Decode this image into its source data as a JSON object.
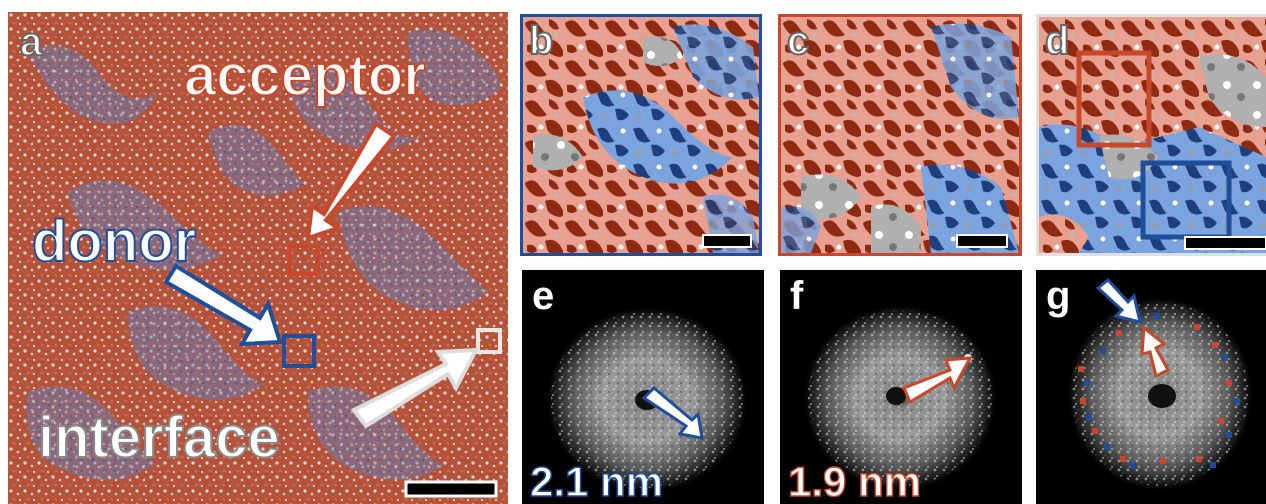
{
  "figure": {
    "panel_a": {
      "letter": "a",
      "labels": {
        "acceptor": "acceptor",
        "donor": "donor",
        "interface": "interface"
      }
    },
    "panel_b": {
      "letter": "b"
    },
    "panel_c": {
      "letter": "c"
    },
    "panel_d": {
      "letter": "d"
    },
    "panel_e": {
      "letter": "e",
      "distance": "2.1 nm"
    },
    "panel_f": {
      "letter": "f",
      "distance": "1.9 nm"
    },
    "panel_g": {
      "letter": "g"
    },
    "colors": {
      "acceptor_dark": "#a33a1f",
      "acceptor_light": "#e8a090",
      "donor_dark": "#1f4f9c",
      "donor_light": "#7ba3dd",
      "interface": "#aaaaaa"
    }
  }
}
